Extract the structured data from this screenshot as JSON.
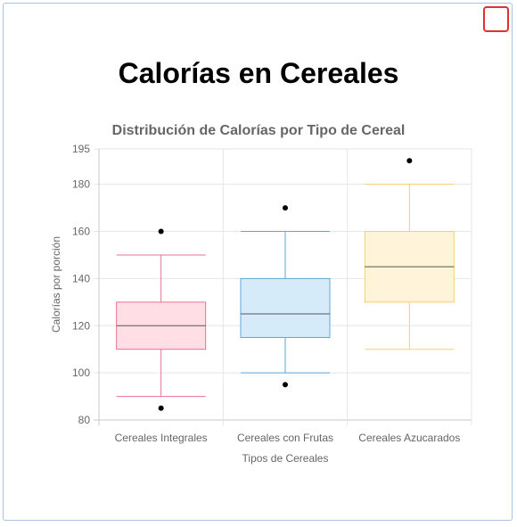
{
  "page": {
    "title": "Calorías en Cereales"
  },
  "chart_data": {
    "type": "boxplot",
    "title": "Distribución de Calorías por Tipo de Cereal",
    "xlabel": "Tipos de Cereales",
    "ylabel": "Calorías por porción",
    "ylim": [
      80,
      195
    ],
    "yticks": [
      80,
      100,
      120,
      140,
      160,
      180,
      195
    ],
    "grid": true,
    "categories": [
      "Cereales Integrales",
      "Cereales con Frutas",
      "Cereales Azucarados"
    ],
    "boxes": [
      {
        "category": "Cereales Integrales",
        "min": 90,
        "q1": 110,
        "median": 120,
        "q3": 130,
        "max": 150,
        "outliers": [
          85,
          160
        ],
        "stroke": "#e8728f",
        "fill": "#ffdee6"
      },
      {
        "category": "Cereales con Frutas",
        "min": 100,
        "q1": 115,
        "median": 125,
        "q3": 140,
        "max": 160,
        "outliers": [
          95,
          170
        ],
        "stroke": "#5aa9d6",
        "fill": "#d6ebf9"
      },
      {
        "category": "Cereales Azucarados",
        "min": 110,
        "q1": 130,
        "median": 145,
        "q3": 160,
        "max": 180,
        "outliers": [
          190
        ],
        "stroke": "#f8cf6a",
        "fill": "#fff3da"
      }
    ],
    "median_color": "#555555",
    "outlier_color": "#000000"
  }
}
